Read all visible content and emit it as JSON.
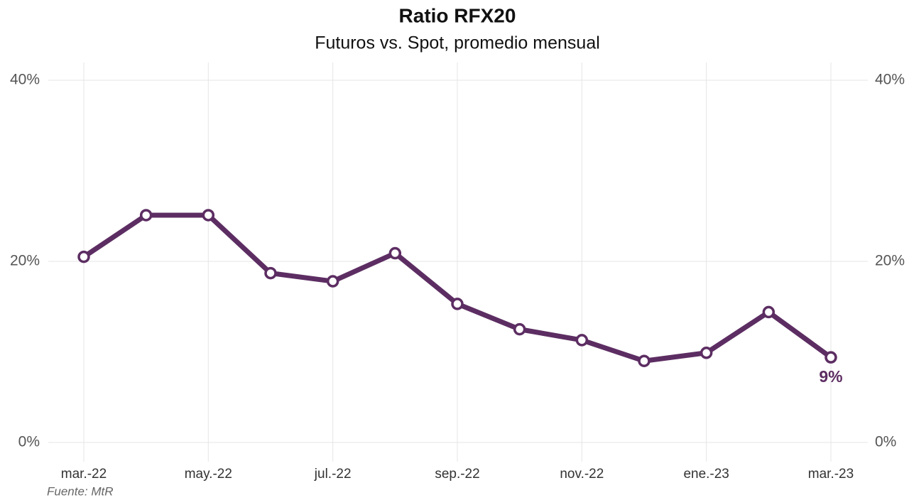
{
  "chart_data": {
    "type": "line",
    "title": "Ratio RFX20",
    "subtitle": "Futuros vs. Spot, promedio mensual",
    "caption": "Fuente: MtR",
    "categories": [
      "mar.-22",
      null,
      "may.-22",
      null,
      "jul.-22",
      null,
      "sep.-22",
      null,
      "nov.-22",
      null,
      "ene.-23",
      null,
      "mar.-23"
    ],
    "series": [
      {
        "color": "#5c2d62",
        "values": [
          20.5,
          25.1,
          25.1,
          18.7,
          17.8,
          20.9,
          15.3,
          12.5,
          11.3,
          9.0,
          9.9,
          14.4,
          9.4
        ],
        "value_labels": [
          null,
          null,
          null,
          null,
          null,
          null,
          null,
          null,
          null,
          null,
          null,
          null,
          "9%"
        ]
      }
    ],
    "ylim": [
      0,
      40
    ],
    "yticks": [
      {
        "value": 0,
        "label": "0%"
      },
      {
        "value": 20,
        "label": "20%"
      },
      {
        "value": 40,
        "label": "40%"
      }
    ],
    "y2lim": [
      0,
      40
    ],
    "y2ticks": [
      {
        "value": 0,
        "label": "0%"
      },
      {
        "value": 20,
        "label": "20%"
      },
      {
        "value": 40,
        "label": "40%"
      }
    ],
    "grid": true
  }
}
